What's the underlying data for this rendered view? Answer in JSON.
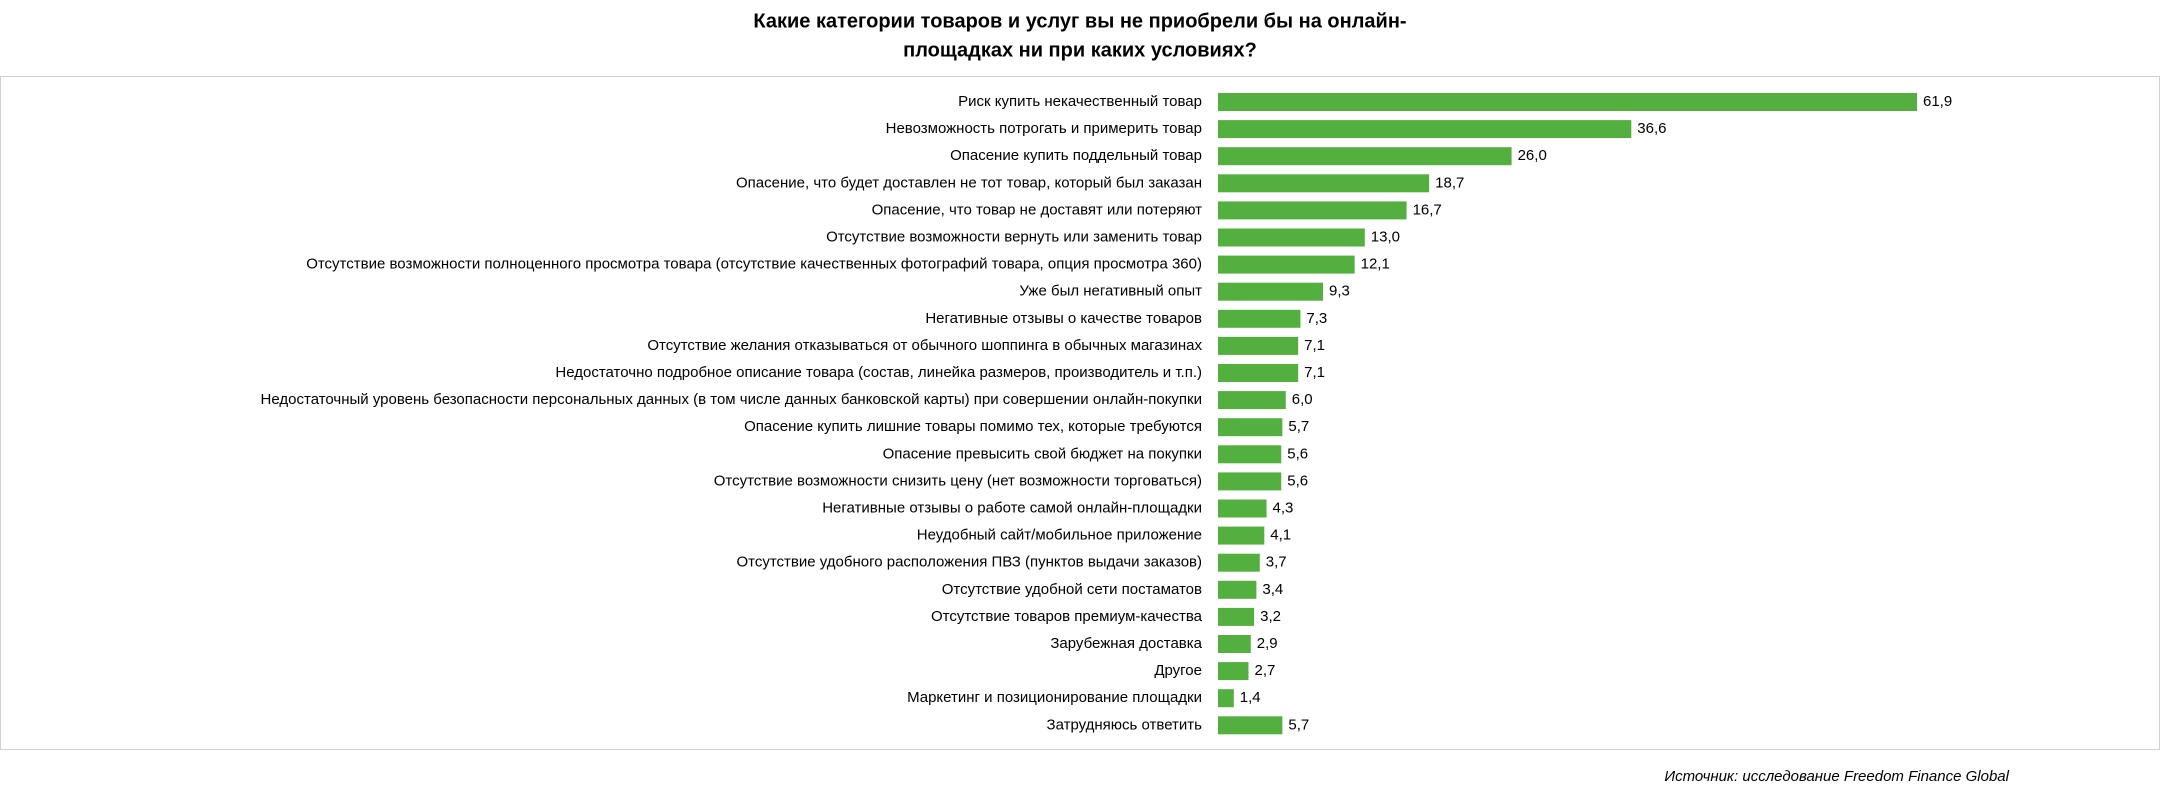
{
  "chart_data": {
    "type": "bar",
    "orientation": "horizontal",
    "title": [
      "Какие категории товаров и услуг вы не приобрели бы на онлайн-",
      "площадках ни при каких условиях?"
    ],
    "categories": [
      "Риск купить некачественный товар",
      "Невозможность потрогать и примерить товар",
      "Опасение купить поддельный товар",
      "Опасение, что будет доставлен не тот товар, который был заказан",
      "Опасение, что товар не доставят или потеряют",
      "Отсутствие возможности вернуть или заменить товар",
      "Отсутствие возможности полноценного просмотра товара (отсутствие качественных фотографий товара, опция просмотра 360)",
      "Уже был негативный опыт",
      "Негативные отзывы о качестве товаров",
      "Отсутствие желания отказываться от обычного шоппинга в обычных магазинах",
      "Недостаточно подробное описание товара (состав, линейка размеров, производитель и т.п.)",
      "Недостаточный уровень безопасности персональных данных (в том числе данных банковской карты) при совершении онлайн-покупки",
      "Опасение купить лишние товары помимо тех, которые требуются",
      "Опасение превысить свой бюджет на покупки",
      "Отсутствие возможности снизить цену (нет возможности торговаться)",
      "Негативные отзывы о работе самой онлайн-площадки",
      "Неудобный сайт/мобильное приложение",
      "Отсутствие удобного расположения ПВЗ (пунктов выдачи заказов)",
      "Отсутствие удобной сети постаматов",
      "Отсутствие товаров премиум-качества",
      "Зарубежная доставка",
      "Другое",
      "Маркетинг и позиционирование площадки",
      "Затрудняюсь ответить"
    ],
    "values": [
      61.9,
      36.6,
      26.0,
      18.7,
      16.7,
      13.0,
      12.1,
      9.3,
      7.3,
      7.1,
      7.1,
      6.0,
      5.7,
      5.6,
      5.6,
      4.3,
      4.1,
      3.7,
      3.4,
      3.2,
      2.9,
      2.7,
      1.4,
      5.7
    ],
    "value_labels": [
      "61,9",
      "36,6",
      "26,0",
      "18,7",
      "16,7",
      "13,0",
      "12,1",
      "9,3",
      "7,3",
      "7,1",
      "7,1",
      "6,0",
      "5,7",
      "5,6",
      "5,6",
      "4,3",
      "4,1",
      "3,7",
      "3,4",
      "3,2",
      "2,9",
      "2,7",
      "1,4",
      "5,7"
    ],
    "color": "#53b03f",
    "source": "Источник: исследование Freedom Finance Global"
  }
}
